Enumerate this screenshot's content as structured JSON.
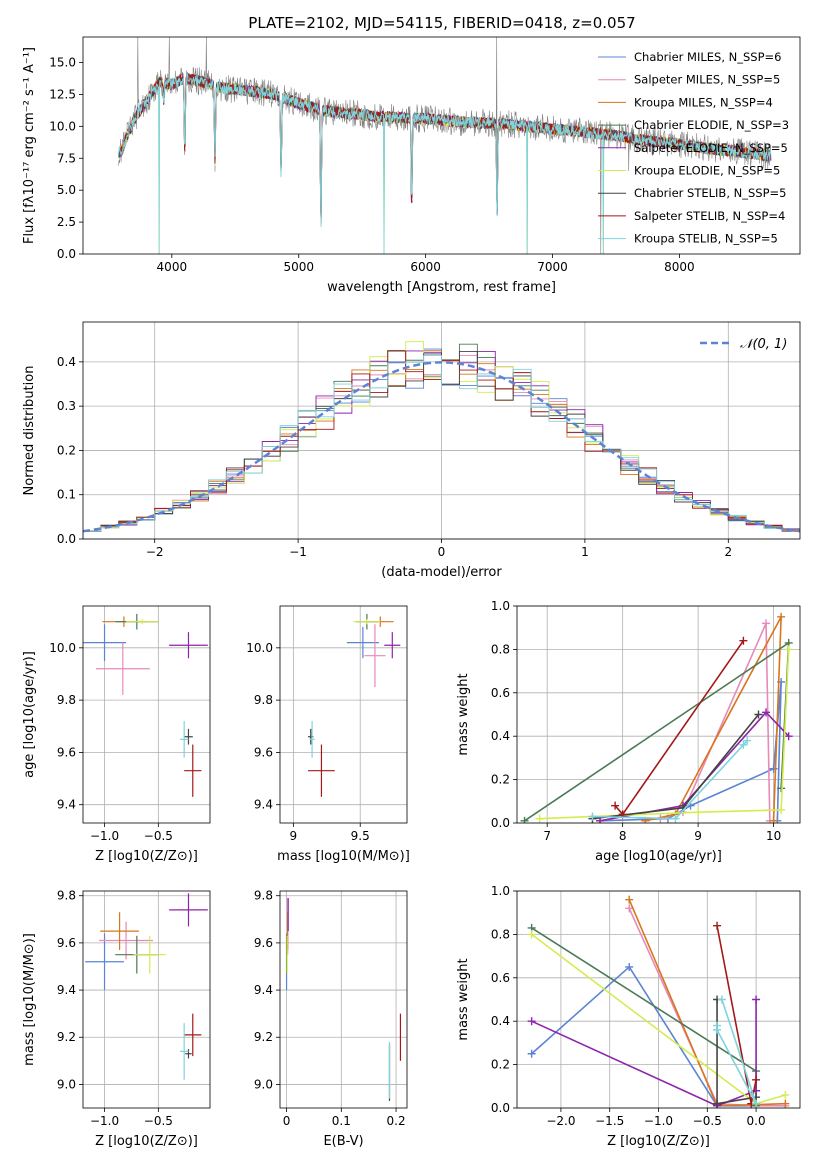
{
  "figure_title": "PLATE=2102, MJD=54115, FIBERID=0418, z=0.057",
  "colors": {
    "cmiles": "#5b84d6",
    "smiles": "#e68aba",
    "kmiles": "#d9751c",
    "celodie": "#4a7a55",
    "selodie": "#8e24aa",
    "kelodie": "#d4ec4f",
    "cstelib": "#444444",
    "sstelib": "#a31818",
    "kstelib": "#7fd3dc",
    "data": "#808080",
    "gauss": "#5b84d6"
  },
  "chart_data": [
    {
      "type": "line",
      "title": "PLATE=2102, MJD=54115, FIBERID=0418, z=0.057",
      "xlabel": "wavelength [Angstrom, rest frame]",
      "ylabel": "Flux [fλ10⁻¹⁷ erg cm⁻² s⁻¹ A⁻¹]",
      "xlim": [
        3300,
        8950
      ],
      "ylim": [
        0,
        17
      ],
      "xticks": [
        4000,
        5000,
        6000,
        7000,
        8000
      ],
      "yticks": [
        0.0,
        2.5,
        5.0,
        7.5,
        10.0,
        12.5,
        15.0
      ],
      "legend_position": "top-right",
      "legend": [
        "Chabrier MILES, N_SSP=6",
        "Salpeter MILES, N_SSP=5",
        "Kroupa MILES, N_SSP=4",
        "Chabrier ELODIE, N_SSP=3",
        "Salpeter ELODIE, N_SSP=5",
        "Kroupa ELODIE, N_SSP=5",
        "Chabrier STELIB, N_SSP=5",
        "Salpeter STELIB, N_SSP=4",
        "Kroupa STELIB, N_SSP=5"
      ],
      "continuum": [
        [
          3600,
          8.0
        ],
        [
          3700,
          10.5
        ],
        [
          3800,
          12.0
        ],
        [
          3900,
          13.5
        ],
        [
          4000,
          13.3
        ],
        [
          4100,
          13.8
        ],
        [
          4200,
          13.6
        ],
        [
          4400,
          13.0
        ],
        [
          4600,
          12.8
        ],
        [
          4800,
          12.5
        ],
        [
          5000,
          11.8
        ],
        [
          5200,
          11.2
        ],
        [
          5400,
          11.0
        ],
        [
          5600,
          10.8
        ],
        [
          5800,
          10.7
        ],
        [
          6000,
          10.6
        ],
        [
          6200,
          10.4
        ],
        [
          6400,
          10.3
        ],
        [
          6600,
          10.2
        ],
        [
          6800,
          10.0
        ],
        [
          7000,
          9.8
        ],
        [
          7200,
          9.6
        ],
        [
          7400,
          9.4
        ],
        [
          7600,
          9.1
        ],
        [
          7800,
          8.8
        ],
        [
          8000,
          8.6
        ],
        [
          8200,
          8.3
        ],
        [
          8400,
          8.1
        ],
        [
          8700,
          7.7
        ]
      ],
      "absorptions": [
        [
          3934,
          1.5
        ],
        [
          4102,
          6.0
        ],
        [
          4340,
          6.0
        ],
        [
          4861,
          6.0
        ],
        [
          5175,
          9.0
        ],
        [
          5890,
          7.0
        ],
        [
          6563,
          7.0
        ]
      ],
      "data_glitches": [
        [
          3730,
          17
        ],
        [
          3980,
          17
        ],
        [
          4270,
          17
        ],
        [
          5670,
          0
        ],
        [
          6560,
          17
        ],
        [
          6800,
          0
        ],
        [
          7380,
          0
        ],
        [
          7600,
          6.5
        ]
      ],
      "model_cutoffs": [
        [
          3900,
          0.0
        ],
        [
          5670,
          0.0
        ],
        [
          6800,
          0.0
        ],
        [
          7400,
          0.0
        ]
      ]
    },
    {
      "type": "bar",
      "title": "",
      "xlabel": "(data-model)/error",
      "ylabel": "Normed distribution",
      "xlim": [
        -2.5,
        2.5
      ],
      "ylim": [
        0,
        0.49
      ],
      "xticks": [
        -2,
        -1,
        0,
        1,
        2
      ],
      "xtick_labels": [
        "−2",
        "−1",
        "0",
        "1",
        "2"
      ],
      "yticks": [
        0.0,
        0.1,
        0.2,
        0.3,
        0.4
      ],
      "grid": true,
      "legend_position": "top-right",
      "legend": [
        "𝒩(0, 1)"
      ],
      "bin_edges": [
        -2.5,
        2.5
      ],
      "bin_count": 40,
      "reference_curve": "normal(0,1)"
    },
    {
      "type": "scatter",
      "panel": "age_vs_Z",
      "xlabel": "Z [log10(Z/Z⊙)]",
      "ylabel": "age  [log10(age/yr)]",
      "xlim": [
        -1.2,
        -0.02
      ],
      "ylim": [
        9.33,
        10.16
      ],
      "xticks": [
        -1.0,
        -0.5
      ],
      "xtick_labels": [
        "−1.0",
        "−0.5"
      ],
      "yticks": [
        9.4,
        9.6,
        9.8,
        10.0
      ],
      "points": [
        {
          "model": "cmiles",
          "x": -1.0,
          "xerr": 0.2,
          "y": 10.02,
          "yerr": 0.07
        },
        {
          "model": "smiles",
          "x": -0.83,
          "xerr": 0.25,
          "y": 9.92,
          "yerr": 0.1
        },
        {
          "model": "kmiles",
          "x": -0.82,
          "xerr": 0.2,
          "y": 10.1,
          "yerr": 0.02
        },
        {
          "model": "celodie",
          "x": -0.7,
          "xerr": 0.2,
          "y": 10.1,
          "yerr": 0.03
        },
        {
          "model": "selodie",
          "x": -0.22,
          "xerr": 0.18,
          "y": 10.01,
          "yerr": 0.05
        },
        {
          "model": "kelodie",
          "x": -0.65,
          "xerr": 0.15,
          "y": 10.1,
          "yerr": 0.01
        },
        {
          "model": "cstelib",
          "x": -0.22,
          "xerr": 0.04,
          "y": 9.66,
          "yerr": 0.03
        },
        {
          "model": "sstelib",
          "x": -0.18,
          "xerr": 0.08,
          "y": 9.53,
          "yerr": 0.1
        },
        {
          "model": "kstelib",
          "x": -0.26,
          "xerr": 0.04,
          "y": 9.65,
          "yerr": 0.07
        }
      ]
    },
    {
      "type": "scatter",
      "panel": "age_vs_mass",
      "xlabel": "mass [log10(M/M⊙)]",
      "ylabel": "",
      "xlim": [
        8.9,
        9.85
      ],
      "ylim": [
        9.33,
        10.16
      ],
      "xticks": [
        9.0,
        9.5
      ],
      "yticks": [
        9.4,
        9.6,
        9.8,
        10.0
      ],
      "points": [
        {
          "model": "cmiles",
          "x": 9.52,
          "xerr": 0.12,
          "y": 10.02,
          "yerr": 0.06
        },
        {
          "model": "smiles",
          "x": 9.61,
          "xerr": 0.08,
          "y": 9.97,
          "yerr": 0.12
        },
        {
          "model": "kmiles",
          "x": 9.65,
          "xerr": 0.1,
          "y": 10.1,
          "yerr": 0.02
        },
        {
          "model": "celodie",
          "x": 9.55,
          "xerr": 0.08,
          "y": 10.1,
          "yerr": 0.03
        },
        {
          "model": "selodie",
          "x": 9.74,
          "xerr": 0.06,
          "y": 10.01,
          "yerr": 0.05
        },
        {
          "model": "kelodie",
          "x": 9.55,
          "xerr": 0.1,
          "y": 10.1,
          "yerr": 0.01
        },
        {
          "model": "cstelib",
          "x": 9.13,
          "xerr": 0.02,
          "y": 9.66,
          "yerr": 0.03
        },
        {
          "model": "sstelib",
          "x": 9.21,
          "xerr": 0.1,
          "y": 9.53,
          "yerr": 0.1
        },
        {
          "model": "kstelib",
          "x": 9.14,
          "xerr": 0.02,
          "y": 9.65,
          "yerr": 0.07
        }
      ]
    },
    {
      "type": "line",
      "panel": "mass_weight_vs_age",
      "xlabel": "age  [log10(age/yr)]",
      "ylabel": "mass weight",
      "xlim": [
        6.6,
        10.35
      ],
      "ylim": [
        0,
        1.0
      ],
      "xticks": [
        7,
        8,
        9,
        10
      ],
      "yticks": [
        0.0,
        0.2,
        0.4,
        0.6,
        0.8,
        1.0
      ],
      "series": [
        {
          "model": "cmiles",
          "x": [
            7.7,
            8.6,
            8.9,
            10.0,
            10.1,
            10.05
          ],
          "y": [
            0.01,
            0.02,
            0.08,
            0.25,
            0.65,
            0.01
          ]
        },
        {
          "model": "smiles",
          "x": [
            8.5,
            8.8,
            9.9,
            9.95
          ],
          "y": [
            0.02,
            0.05,
            0.92,
            0.01
          ]
        },
        {
          "model": "kmiles",
          "x": [
            8.3,
            8.7,
            10.1,
            10.0
          ],
          "y": [
            0.01,
            0.04,
            0.95,
            0.01
          ]
        },
        {
          "model": "celodie",
          "x": [
            6.7,
            10.2,
            10.1
          ],
          "y": [
            0.01,
            0.83,
            0.16
          ]
        },
        {
          "model": "selodie",
          "x": [
            7.7,
            8.8,
            9.9,
            10.2
          ],
          "y": [
            0.01,
            0.08,
            0.51,
            0.4
          ]
        },
        {
          "model": "kelodie",
          "x": [
            6.9,
            9.0,
            10.1,
            10.2
          ],
          "y": [
            0.02,
            0.05,
            0.06,
            0.8
          ]
        },
        {
          "model": "cstelib",
          "x": [
            7.6,
            8.8,
            9.8
          ],
          "y": [
            0.02,
            0.07,
            0.5
          ]
        },
        {
          "model": "sstelib",
          "x": [
            7.9,
            8.0,
            9.6
          ],
          "y": [
            0.08,
            0.04,
            0.84
          ]
        },
        {
          "model": "kstelib",
          "x": [
            7.6,
            8.7,
            9.6,
            9.65
          ],
          "y": [
            0.03,
            0.02,
            0.36,
            0.38
          ]
        }
      ]
    },
    {
      "type": "scatter",
      "panel": "mass_vs_Z",
      "xlabel": "Z [log10(Z/Z⊙)]",
      "ylabel": "mass [log10(M/M⊙)]",
      "xlim": [
        -1.2,
        -0.02
      ],
      "ylim": [
        8.9,
        9.82
      ],
      "xticks": [
        -1.0,
        -0.5
      ],
      "xtick_labels": [
        "−1.0",
        "−0.5"
      ],
      "yticks": [
        9.0,
        9.2,
        9.4,
        9.6,
        9.8
      ],
      "points": [
        {
          "model": "cmiles",
          "x": -1.0,
          "xerr": 0.18,
          "y": 9.52,
          "yerr": 0.12
        },
        {
          "model": "smiles",
          "x": -0.8,
          "xerr": 0.25,
          "y": 9.61,
          "yerr": 0.08
        },
        {
          "model": "kmiles",
          "x": -0.86,
          "xerr": 0.18,
          "y": 9.65,
          "yerr": 0.08
        },
        {
          "model": "celodie",
          "x": -0.7,
          "xerr": 0.2,
          "y": 9.55,
          "yerr": 0.08
        },
        {
          "model": "selodie",
          "x": -0.22,
          "xerr": 0.18,
          "y": 9.74,
          "yerr": 0.07
        },
        {
          "model": "kelodie",
          "x": -0.58,
          "xerr": 0.15,
          "y": 9.55,
          "yerr": 0.08
        },
        {
          "model": "cstelib",
          "x": -0.22,
          "xerr": 0.03,
          "y": 9.13,
          "yerr": 0.02
        },
        {
          "model": "sstelib",
          "x": -0.18,
          "xerr": 0.08,
          "y": 9.21,
          "yerr": 0.09
        },
        {
          "model": "kstelib",
          "x": -0.26,
          "xerr": 0.04,
          "y": 9.14,
          "yerr": 0.12
        }
      ]
    },
    {
      "type": "scatter",
      "panel": "mass_vs_ebv",
      "xlabel": "E(B-V)",
      "ylabel": "",
      "xlim": [
        -0.012,
        0.22
      ],
      "ylim": [
        8.9,
        9.82
      ],
      "xticks": [
        0.0,
        0.1,
        0.2
      ],
      "yticks": [
        9.0,
        9.2,
        9.4,
        9.6,
        9.8
      ],
      "points": [
        {
          "model": "cmiles",
          "x": 0.0,
          "xerr": 0.0,
          "y": 9.52,
          "yerr": 0.12
        },
        {
          "model": "smiles",
          "x": 0.002,
          "xerr": 0.0,
          "y": 9.67,
          "yerr": 0.12
        },
        {
          "model": "kmiles",
          "x": 0.002,
          "xerr": 0.0,
          "y": 9.65,
          "yerr": 0.08
        },
        {
          "model": "celodie",
          "x": 0.0,
          "xerr": 0.0,
          "y": 9.55,
          "yerr": 0.08
        },
        {
          "model": "selodie",
          "x": 0.003,
          "xerr": 0.0,
          "y": 9.72,
          "yerr": 0.07
        },
        {
          "model": "kelodie",
          "x": 0.001,
          "xerr": 0.0,
          "y": 9.55,
          "yerr": 0.08
        },
        {
          "model": "cstelib",
          "x": 0.188,
          "xerr": 0.0,
          "y": 9.05,
          "yerr": 0.12
        },
        {
          "model": "sstelib",
          "x": 0.208,
          "xerr": 0.0,
          "y": 9.2,
          "yerr": 0.1
        },
        {
          "model": "kstelib",
          "x": 0.188,
          "xerr": 0.0,
          "y": 9.06,
          "yerr": 0.12
        }
      ]
    },
    {
      "type": "line",
      "panel": "mass_weight_vs_Z",
      "xlabel": "Z [log10(Z/Z⊙)]",
      "ylabel": "mass weight",
      "xlim": [
        -2.45,
        0.45
      ],
      "ylim": [
        0,
        1.0
      ],
      "xticks": [
        -2.0,
        -1.5,
        -1.0,
        -0.5,
        0.0
      ],
      "xtick_labels": [
        "−2.0",
        "−1.5",
        "−1.0",
        "−0.5",
        "0.0"
      ],
      "yticks": [
        0.0,
        0.2,
        0.4,
        0.6,
        0.8,
        1.0
      ],
      "series": [
        {
          "model": "cmiles",
          "x": [
            -2.3,
            -1.3,
            -0.4,
            0.0,
            0.0
          ],
          "y": [
            0.25,
            0.65,
            0.01,
            0.01,
            0.08
          ]
        },
        {
          "model": "smiles",
          "x": [
            -1.3,
            -0.4,
            0.0,
            0.3
          ],
          "y": [
            0.92,
            0.02,
            0.01,
            0.01
          ]
        },
        {
          "model": "kmiles",
          "x": [
            -1.3,
            -0.4,
            0.3
          ],
          "y": [
            0.96,
            0.01,
            0.02
          ]
        },
        {
          "model": "celodie",
          "x": [
            -2.3,
            0.0,
            0.0
          ],
          "y": [
            0.83,
            0.17,
            0.01
          ]
        },
        {
          "model": "selodie",
          "x": [
            -2.3,
            -0.4,
            0.0,
            0.0
          ],
          "y": [
            0.4,
            0.01,
            0.08,
            0.5
          ]
        },
        {
          "model": "kelodie",
          "x": [
            -2.3,
            0.0,
            0.3
          ],
          "y": [
            0.8,
            0.02,
            0.06
          ]
        },
        {
          "model": "cstelib",
          "x": [
            -0.4,
            -0.4,
            0.0
          ],
          "y": [
            0.5,
            0.02,
            0.05
          ]
        },
        {
          "model": "sstelib",
          "x": [
            -0.4,
            -0.05,
            0.0
          ],
          "y": [
            0.84,
            0.02,
            0.13
          ]
        },
        {
          "model": "kstelib",
          "x": [
            -0.4,
            -0.4,
            0.0,
            -0.35
          ],
          "y": [
            0.38,
            0.36,
            0.02,
            0.5
          ]
        }
      ]
    }
  ]
}
